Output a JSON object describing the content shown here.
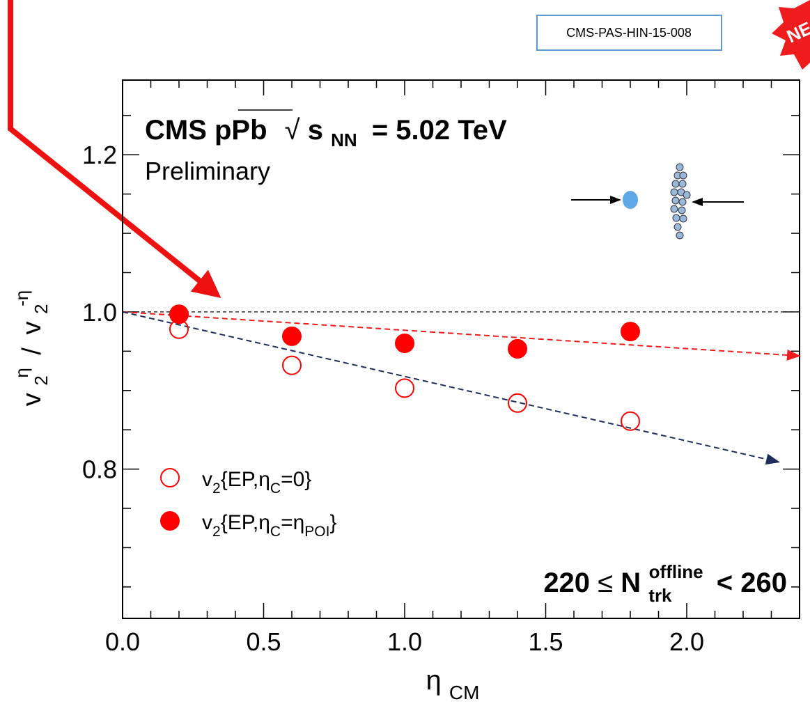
{
  "chart_data": {
    "type": "scatter",
    "note_box": "CMS-PAS-HIN-15-008",
    "badge": "NE",
    "title": {
      "experiment": "CMS pPb",
      "sqrt": "√",
      "s": "s",
      "nn": "NN",
      "energy": "= 5.02 TeV"
    },
    "subtitle": "Preliminary",
    "selection": {
      "low": "220",
      "leq": "≤",
      "n": "N",
      "sub": "trk",
      "sup": "offline",
      "high": "< 260"
    },
    "x_label": {
      "main": "η",
      "sub": "CM"
    },
    "y_label": {
      "v1": "v",
      "sub1": "2",
      "sup1": "η",
      "slash": "/",
      "v2": "v",
      "sub2": "2",
      "sup2": "-η"
    },
    "xlim": [
      0,
      2.4
    ],
    "ylim": [
      0.61,
      1.295
    ],
    "xticks": [
      {
        "value": 0,
        "label": "0.0"
      },
      {
        "value": 0.5,
        "label": "0.5"
      },
      {
        "value": 1,
        "label": "1.0"
      },
      {
        "value": 1.5,
        "label": "1.5"
      },
      {
        "value": 2,
        "label": "2.0"
      }
    ],
    "x_minor_ticks": [
      0.1,
      0.2,
      0.3,
      0.4,
      0.6,
      0.7,
      0.8,
      0.9,
      1.1,
      1.2,
      1.3,
      1.4,
      1.6,
      1.7,
      1.8,
      1.9,
      2.1,
      2.2,
      2.3
    ],
    "yticks": [
      {
        "value": 0.8,
        "label": "0.8"
      },
      {
        "value": 1,
        "label": "1.0"
      },
      {
        "value": 1.2,
        "label": "1.2"
      }
    ],
    "y_minor_ticks": [
      0.65,
      0.7,
      0.75,
      0.85,
      0.9,
      0.95,
      1.05,
      1.1,
      1.15,
      1.25
    ],
    "reference_line": 1,
    "series": [
      {
        "name": [
          "v",
          "2",
          "{EP,η",
          "C",
          "=0}"
        ],
        "color": "#ff0000",
        "marker": "open",
        "x": [
          0.2,
          0.6,
          1.0,
          1.4,
          1.8
        ],
        "values": [
          0.978,
          0.932,
          0.903,
          0.884,
          0.861
        ]
      },
      {
        "name": [
          "v",
          "2",
          "{EP,η",
          "C",
          "=η",
          "POI",
          "}"
        ],
        "color": "#ff0000",
        "marker": "filled",
        "x": [
          0.2,
          0.6,
          1.0,
          1.4,
          1.8
        ],
        "values": [
          0.997,
          0.969,
          0.96,
          0.953,
          0.975
        ]
      }
    ],
    "guide_lines": [
      {
        "color": "#ee1c1c",
        "x": [
          0,
          2.4
        ],
        "values": [
          1.0,
          0.944
        ]
      },
      {
        "color": "#1f2d5c",
        "x": [
          0,
          2.326
        ],
        "values": [
          1.0,
          0.809
        ]
      }
    ]
  }
}
